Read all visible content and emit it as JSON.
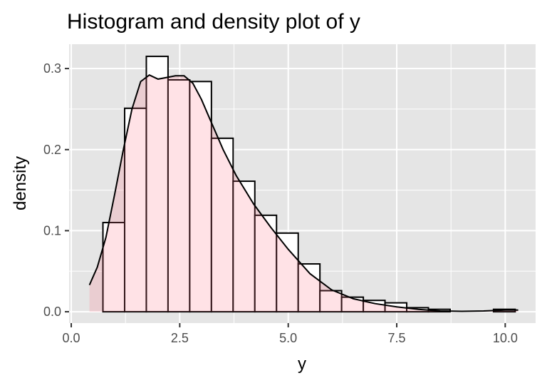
{
  "chart_data": {
    "type": "histogram",
    "title": "Histogram and density plot of y",
    "xlabel": "y",
    "ylabel": "density",
    "xlim": [
      -0.05,
      10.7
    ],
    "ylim": [
      -0.014,
      0.33
    ],
    "x_ticks": [
      0,
      2.5,
      5,
      7.5,
      10
    ],
    "x_tick_labels": [
      "0.0",
      "2.5",
      "5.0",
      "7.5",
      "10.0"
    ],
    "y_ticks": [
      0,
      0.1,
      0.2,
      0.3
    ],
    "y_tick_labels": [
      "0.0",
      "0.1",
      "0.2",
      "0.3"
    ],
    "grid": true,
    "bins": [
      {
        "x0": 0.73,
        "x1": 1.23,
        "density": 0.11
      },
      {
        "x0": 1.23,
        "x1": 1.73,
        "density": 0.251
      },
      {
        "x0": 1.73,
        "x1": 2.23,
        "density": 0.315
      },
      {
        "x0": 2.23,
        "x1": 2.73,
        "density": 0.286
      },
      {
        "x0": 2.73,
        "x1": 3.23,
        "density": 0.284
      },
      {
        "x0": 3.23,
        "x1": 3.73,
        "density": 0.214
      },
      {
        "x0": 3.73,
        "x1": 4.23,
        "density": 0.161
      },
      {
        "x0": 4.23,
        "x1": 4.73,
        "density": 0.119
      },
      {
        "x0": 4.73,
        "x1": 5.23,
        "density": 0.097
      },
      {
        "x0": 5.23,
        "x1": 5.73,
        "density": 0.059
      },
      {
        "x0": 5.73,
        "x1": 6.23,
        "density": 0.026
      },
      {
        "x0": 6.23,
        "x1": 6.73,
        "density": 0.018
      },
      {
        "x0": 6.73,
        "x1": 7.23,
        "density": 0.014
      },
      {
        "x0": 7.23,
        "x1": 7.73,
        "density": 0.011
      },
      {
        "x0": 7.73,
        "x1": 8.23,
        "density": 0.005
      },
      {
        "x0": 8.23,
        "x1": 8.73,
        "density": 0.003
      },
      {
        "x0": 8.73,
        "x1": 9.23,
        "density": 0.0
      },
      {
        "x0": 9.23,
        "x1": 9.73,
        "density": 0.0
      },
      {
        "x0": 9.73,
        "x1": 10.23,
        "density": 0.003
      }
    ],
    "density_curve": {
      "x": [
        0.42,
        0.6,
        0.8,
        1.0,
        1.2,
        1.4,
        1.6,
        1.8,
        2.0,
        2.2,
        2.4,
        2.6,
        2.8,
        3.0,
        3.2,
        3.5,
        3.8,
        4.2,
        4.6,
        5.0,
        5.5,
        6.0,
        6.5,
        7.0,
        7.5,
        8.0,
        8.5,
        9.0,
        9.5,
        10.0,
        10.3
      ],
      "y": [
        0.033,
        0.055,
        0.092,
        0.145,
        0.2,
        0.25,
        0.284,
        0.292,
        0.287,
        0.289,
        0.291,
        0.291,
        0.282,
        0.262,
        0.237,
        0.2,
        0.168,
        0.133,
        0.104,
        0.077,
        0.047,
        0.027,
        0.016,
        0.01,
        0.006,
        0.003,
        0.001,
        0.0005,
        0.001,
        0.002,
        0.002
      ]
    },
    "colors": {
      "panel_background": "#e5e5e5",
      "grid": "#ffffff",
      "histogram_fill": "#ffffff",
      "histogram_outline": "#000000",
      "density_fill": "#ff6c82",
      "density_fill_opacity": 0.2,
      "density_line": "#000000"
    }
  }
}
